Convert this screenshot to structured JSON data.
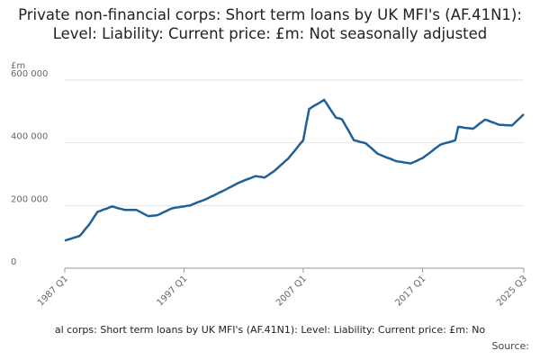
{
  "chart_data": {
    "type": "line",
    "title": "Private non-financial corps: Short term loans by UK MFI's (AF.41N1): Level: Liability: Current price: £m: Not seasonally adjusted",
    "y_axis_label": "£m",
    "footer": "al corps: Short term loans by UK MFI's (AF.41N1): Level: Liability: Current price: £m: No",
    "source": "Source:",
    "color": "#206095",
    "grid": true,
    "ylim": [
      0,
      600000
    ],
    "yticks": [
      0,
      {
        "value": 200000,
        "label": "200 000"
      },
      {
        "value": 400000,
        "label": "400 000"
      },
      {
        "value": 600000,
        "label": "600 000"
      }
    ],
    "categories": [
      "1987 Q1",
      null,
      null,
      null,
      null,
      null,
      null,
      null,
      null,
      null,
      null,
      null,
      null,
      null,
      null,
      null,
      null,
      null,
      null,
      null,
      null,
      null,
      null,
      null,
      null,
      null,
      null,
      null,
      null,
      null,
      null,
      null,
      null,
      null,
      null,
      null,
      null,
      null,
      null,
      null,
      "1997 Q1",
      null,
      null,
      null,
      null,
      null,
      null,
      null,
      null,
      null,
      null,
      null,
      null,
      null,
      null,
      null,
      null,
      null,
      null,
      null,
      null,
      null,
      null,
      null,
      null,
      null,
      null,
      null,
      null,
      null,
      null,
      null,
      null,
      null,
      null,
      null,
      null,
      null,
      null,
      null,
      "2007 Q1",
      null,
      null,
      null,
      null,
      null,
      null,
      null,
      null,
      null,
      null,
      null,
      null,
      null,
      null,
      null,
      null,
      null,
      null,
      null,
      null,
      null,
      null,
      null,
      null,
      null,
      null,
      null,
      null,
      null,
      null,
      null,
      null,
      null,
      null,
      null,
      null,
      null,
      null,
      null,
      "2017 Q1",
      null,
      null,
      null,
      null,
      null,
      null,
      null,
      null,
      null,
      null,
      null,
      null,
      null,
      null,
      null,
      null,
      null,
      null,
      null,
      null,
      null,
      null,
      null,
      null,
      null,
      null,
      null,
      null,
      null,
      null,
      null,
      null,
      null,
      "2025 Q3"
    ],
    "values": [
      88000,
      91000,
      94000,
      97000,
      100000,
      103000,
      114000,
      126000,
      137000,
      151000,
      166000,
      180000,
      183000,
      187000,
      190000,
      194000,
      197000,
      194000,
      191000,
      189000,
      186000,
      186000,
      186000,
      186000,
      186000,
      181000,
      176000,
      171000,
      166000,
      167000,
      168000,
      169000,
      173000,
      178000,
      182000,
      187000,
      191000,
      193000,
      194000,
      196000,
      197000,
      199000,
      200000,
      204000,
      208000,
      212000,
      215000,
      219000,
      223000,
      228000,
      232000,
      237000,
      242000,
      246000,
      251000,
      256000,
      261000,
      266000,
      271000,
      275000,
      279000,
      283000,
      286000,
      290000,
      294000,
      292000,
      291000,
      289000,
      295000,
      302000,
      308000,
      316000,
      325000,
      333000,
      342000,
      350000,
      362000,
      373000,
      385000,
      397000,
      408000,
      460000,
      508000,
      514000,
      520000,
      525000,
      531000,
      537000,
      523000,
      508000,
      494000,
      480000,
      478000,
      475000,
      458000,
      442000,
      425000,
      408000,
      406000,
      403000,
      401000,
      398000,
      390000,
      382000,
      373000,
      365000,
      361000,
      357000,
      353000,
      350000,
      346000,
      342000,
      340000,
      339000,
      337000,
      336000,
      334000,
      338000,
      342000,
      347000,
      351000,
      358000,
      365000,
      372000,
      380000,
      387000,
      394000,
      397000,
      400000,
      402000,
      405000,
      408000,
      451000,
      450000,
      448000,
      447000,
      446000,
      445000,
      452000,
      460000,
      467000,
      474000,
      471000,
      467000,
      464000,
      460000,
      457000,
      457000,
      456000,
      456000,
      455000,
      464000,
      473000,
      482000,
      491000
    ]
  }
}
